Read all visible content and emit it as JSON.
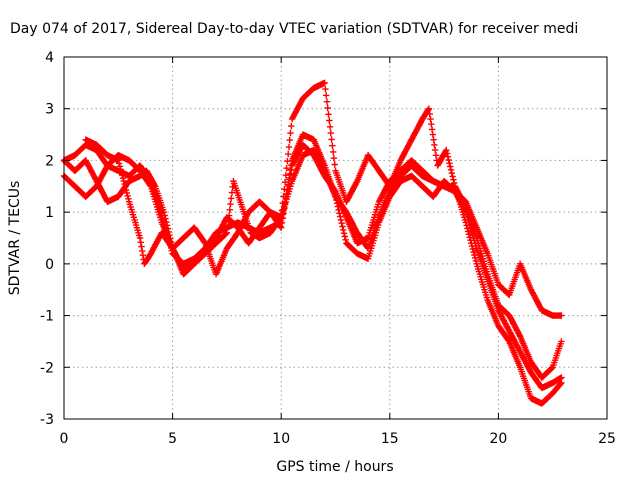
{
  "chart_data": {
    "type": "scatter",
    "title": "Day 074 of 2017, Sidereal Day-to-day VTEC variation (SDTVAR) for receiver medi",
    "xlabel": "GPS time / hours",
    "ylabel": "SDTVAR / TECUs",
    "xlim": [
      0,
      25
    ],
    "ylim": [
      -3,
      4
    ],
    "xticks": [
      "0",
      "5",
      "10",
      "15",
      "20",
      "25"
    ],
    "yticks": [
      "-3",
      "-2",
      "-1",
      "0",
      "1",
      "2",
      "3",
      "4"
    ],
    "grid": true,
    "marker": "plus",
    "color": "#ff0000",
    "series": [
      {
        "x": [
          0.0,
          0.5,
          1.0,
          1.5,
          2.0,
          2.5,
          3.0,
          3.5,
          4.0,
          4.3,
          4.6,
          5.0,
          5.5,
          6.0,
          6.5,
          7.0,
          7.5,
          8.0,
          8.5,
          9.0,
          9.5,
          10.0,
          10.5,
          11.0,
          11.5,
          12.0,
          12.5,
          13.0,
          13.5,
          14.0,
          14.5,
          15.0,
          15.5,
          16.0,
          16.5,
          17.0,
          17.5,
          18.0,
          18.5,
          19.0,
          19.5,
          20.0,
          20.5,
          21.0,
          21.5,
          22.0,
          22.5,
          22.9
        ],
        "y": [
          2.0,
          2.1,
          2.3,
          2.2,
          1.9,
          1.8,
          1.7,
          1.9,
          1.6,
          1.2,
          0.8,
          0.2,
          0.0,
          0.1,
          0.3,
          0.6,
          0.7,
          0.8,
          0.7,
          0.6,
          0.7,
          0.8,
          1.9,
          2.3,
          2.1,
          1.7,
          1.4,
          0.9,
          0.4,
          0.5,
          1.2,
          1.6,
          1.8,
          2.0,
          1.8,
          1.6,
          1.5,
          1.5,
          1.1,
          0.5,
          -0.2,
          -0.8,
          -1.0,
          -1.4,
          -1.9,
          -2.2,
          -2.0,
          -1.5
        ]
      },
      {
        "x": [
          0.0,
          0.5,
          1.0,
          1.5,
          2.0,
          2.5,
          3.0,
          3.5,
          4.0,
          4.5,
          5.0,
          5.5,
          6.0,
          6.5,
          7.0,
          7.5,
          8.0,
          8.5,
          9.0,
          9.5,
          10.0,
          10.5,
          11.0,
          11.5,
          12.0,
          12.5,
          13.0,
          13.5,
          14.0,
          14.5,
          15.0,
          15.5,
          16.0,
          16.5,
          17.0,
          17.5,
          18.0,
          18.5,
          19.0,
          19.5,
          20.0,
          20.5,
          21.0,
          21.5,
          22.0,
          22.5,
          22.9
        ],
        "y": [
          1.7,
          1.5,
          1.3,
          1.5,
          1.9,
          2.1,
          2.0,
          1.8,
          1.5,
          0.8,
          0.3,
          -0.1,
          0.1,
          0.2,
          0.5,
          0.9,
          0.7,
          0.4,
          0.7,
          1.0,
          0.9,
          1.6,
          2.1,
          2.2,
          1.8,
          1.3,
          1.0,
          0.6,
          0.3,
          0.9,
          1.4,
          1.7,
          1.9,
          1.7,
          1.6,
          1.5,
          1.4,
          1.0,
          0.3,
          -0.3,
          -0.9,
          -1.3,
          -1.7,
          -2.1,
          -2.4,
          -2.3,
          -2.2
        ]
      },
      {
        "x": [
          0.0,
          0.5,
          1.0,
          1.5,
          2.0,
          2.5,
          3.0,
          3.5,
          3.8,
          4.2,
          4.6,
          5.0,
          5.5,
          6.0,
          6.5,
          7.0,
          7.5,
          7.8,
          8.2,
          8.6,
          9.0,
          9.5,
          10.0,
          10.5,
          11.0,
          11.5,
          12.0,
          12.5,
          13.0,
          13.5,
          14.0,
          14.5,
          15.0,
          15.5,
          16.0,
          16.5,
          16.8,
          17.2,
          17.6,
          18.0,
          18.5,
          19.0,
          19.5,
          20.0,
          20.5,
          21.0,
          21.5,
          22.0,
          22.5,
          22.9
        ],
        "y": [
          2.0,
          1.8,
          2.0,
          1.6,
          1.2,
          1.3,
          1.6,
          1.7,
          1.8,
          1.5,
          1.0,
          0.3,
          -0.2,
          0.0,
          0.2,
          0.4,
          0.6,
          1.6,
          1.1,
          0.6,
          0.5,
          0.6,
          0.9,
          2.8,
          3.2,
          3.4,
          3.5,
          1.8,
          1.2,
          1.6,
          2.1,
          1.8,
          1.5,
          2.0,
          2.4,
          2.8,
          3.0,
          1.9,
          2.2,
          1.5,
          0.8,
          0.0,
          -0.7,
          -1.2,
          -1.5,
          -2.0,
          -2.6,
          -2.7,
          -2.5,
          -2.3
        ]
      },
      {
        "x": [
          1.0,
          1.5,
          2.0,
          2.5,
          3.0,
          3.5,
          3.7,
          4.0,
          4.5,
          5.0,
          5.5,
          6.0,
          6.5,
          7.0,
          7.5,
          8.0,
          8.5,
          9.0,
          9.5,
          10.0,
          10.5,
          11.0,
          11.5,
          12.0,
          12.5,
          13.0,
          13.5,
          14.0,
          14.5,
          15.0,
          15.5,
          16.0,
          16.5,
          17.0,
          17.5,
          18.0,
          18.5,
          19.0,
          19.5,
          20.0,
          20.5,
          21.0,
          21.5,
          22.0,
          22.5,
          22.9
        ],
        "y": [
          2.4,
          2.3,
          2.1,
          2.0,
          1.2,
          0.5,
          0.0,
          0.2,
          0.6,
          0.3,
          0.5,
          0.7,
          0.4,
          -0.2,
          0.3,
          0.6,
          1.0,
          1.2,
          1.0,
          0.7,
          2.0,
          2.5,
          2.4,
          1.9,
          1.3,
          0.4,
          0.2,
          0.1,
          0.8,
          1.3,
          1.6,
          1.7,
          1.5,
          1.3,
          1.6,
          1.4,
          1.2,
          0.7,
          0.2,
          -0.4,
          -0.6,
          0.0,
          -0.5,
          -0.9,
          -1.0,
          -1.0
        ]
      }
    ]
  }
}
